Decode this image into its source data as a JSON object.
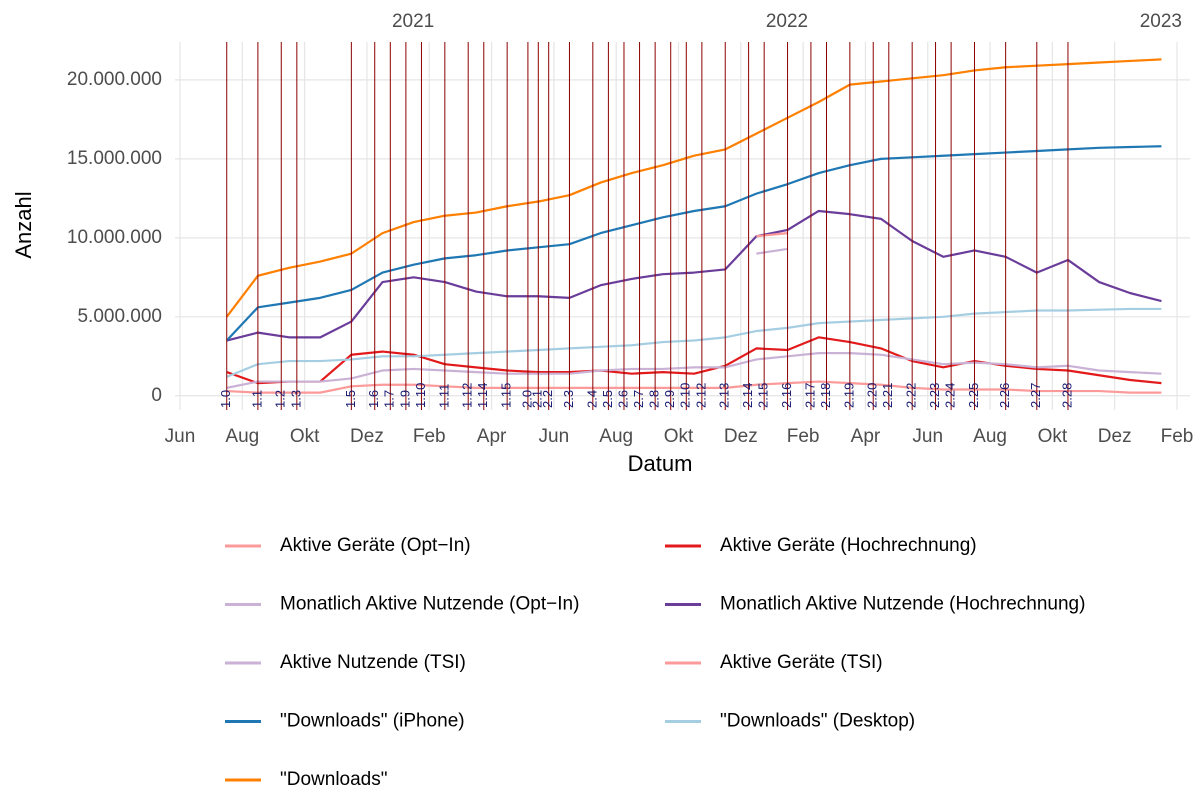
{
  "chart_data": {
    "type": "line",
    "xlabel": "Datum",
    "ylabel": "Anzahl",
    "x": [
      "2020-07",
      "2020-08",
      "2020-09",
      "2020-10",
      "2020-11",
      "2020-12",
      "2021-01",
      "2021-02",
      "2021-03",
      "2021-04",
      "2021-05",
      "2021-06",
      "2021-07",
      "2021-08",
      "2021-09",
      "2021-10",
      "2021-11",
      "2021-12",
      "2022-01",
      "2022-02",
      "2022-03",
      "2022-04",
      "2022-05",
      "2022-06",
      "2022-07",
      "2022-08",
      "2022-09",
      "2022-10",
      "2022-11",
      "2022-12",
      "2023-01"
    ],
    "series": [
      {
        "name": "Aktive Geräte (Opt−In)",
        "color": "#fb9a99",
        "values": [
          300000.0,
          200000.0,
          200000.0,
          200000.0,
          600000.0,
          700000.0,
          700000.0,
          600000.0,
          500000.0,
          500000.0,
          500000.0,
          500000.0,
          500000.0,
          500000.0,
          500000.0,
          500000.0,
          500000.0,
          700000.0,
          800000.0,
          900000.0,
          800000.0,
          700000.0,
          500000.0,
          400000.0,
          400000.0,
          400000.0,
          300000.0,
          300000.0,
          300000.0,
          200000.0,
          200000.0
        ]
      },
      {
        "name": "Aktive Geräte (Hochrechnung)",
        "color": "#e31a1c",
        "values": [
          1500000.0,
          800000.0,
          900000.0,
          900000.0,
          2600000.0,
          2800000.0,
          2600000.0,
          2000000.0,
          1800000.0,
          1600000.0,
          1500000.0,
          1500000.0,
          1600000.0,
          1400000.0,
          1500000.0,
          1400000.0,
          1900000.0,
          3000000.0,
          2900000.0,
          3700000.0,
          3400000.0,
          3000000.0,
          2200000.0,
          1800000.0,
          2200000.0,
          1900000.0,
          1700000.0,
          1600000.0,
          1300000.0,
          1000000.0,
          800000.0
        ]
      },
      {
        "name": "Monatlich Aktive Nutzende (Opt−In)",
        "color": "#cab2d6",
        "values": [
          500000.0,
          900000.0,
          900000.0,
          900000.0,
          1100000.0,
          1600000.0,
          1700000.0,
          1600000.0,
          1500000.0,
          1400000.0,
          1400000.0,
          1400000.0,
          1600000.0,
          1700000.0,
          1700000.0,
          1800000.0,
          1800000.0,
          2300000.0,
          2500000.0,
          2700000.0,
          2700000.0,
          2600000.0,
          2300000.0,
          2000000.0,
          2100000.0,
          2000000.0,
          1800000.0,
          1900000.0,
          1600000.0,
          1500000.0,
          1400000.0
        ]
      },
      {
        "name": "Monatlich Aktive Nutzende (Hochrechnung)",
        "color": "#6a3d9a",
        "values": [
          3500000.0,
          4000000.0,
          3700000.0,
          3700000.0,
          4700000.0,
          7200000.0,
          7500000.0,
          7200000.0,
          6600000.0,
          6300000.0,
          6300000.0,
          6200000.0,
          7000000.0,
          7400000.0,
          7700000.0,
          7800000.0,
          8000000.0,
          10100000.0,
          10500000.0,
          11700000.0,
          11500000.0,
          11200000.0,
          9800000.0,
          8800000.0,
          9200000.0,
          8800000.0,
          7800000.0,
          8600000.0,
          7200000.0,
          6500000.0,
          6000000.0
        ]
      },
      {
        "name": "Aktive Nutzende (TSI)",
        "color": "#cab2d6",
        "values": [
          null,
          null,
          null,
          null,
          null,
          null,
          null,
          null,
          null,
          null,
          null,
          null,
          null,
          null,
          null,
          null,
          null,
          9000000.0,
          9300000.0,
          null,
          null,
          null,
          null,
          null,
          null,
          null,
          null,
          null,
          null,
          null,
          null
        ]
      },
      {
        "name": "Aktive Geräte (TSI)",
        "color": "#fb9a99",
        "values": [
          null,
          null,
          null,
          null,
          null,
          null,
          null,
          null,
          null,
          null,
          null,
          null,
          null,
          null,
          null,
          null,
          null,
          10100000.0,
          10300000.0,
          null,
          null,
          null,
          null,
          null,
          null,
          null,
          null,
          null,
          null,
          null,
          null
        ]
      },
      {
        "name": "\"Downloads\" (iPhone)",
        "color": "#1f78b4",
        "values": [
          3500000.0,
          5600000.0,
          5900000.0,
          6200000.0,
          6700000.0,
          7800000.0,
          8300000.0,
          8700000.0,
          8900000.0,
          9200000.0,
          9400000.0,
          9600000.0,
          10300000.0,
          10800000.0,
          11300000.0,
          11700000.0,
          12000000.0,
          12800000.0,
          13400000.0,
          14100000.0,
          14600000.0,
          15000000.0,
          15100000.0,
          15200000.0,
          15300000.0,
          15400000.0,
          15500000.0,
          15600000.0,
          15700000.0,
          15750000.0,
          15800000.0
        ]
      },
      {
        "name": "\"Downloads\" (Desktop)",
        "color": "#a6cee3",
        "values": [
          1200000.0,
          2000000.0,
          2200000.0,
          2200000.0,
          2300000.0,
          2500000.0,
          2500000.0,
          2600000.0,
          2700000.0,
          2800000.0,
          2900000.0,
          3000000.0,
          3100000.0,
          3200000.0,
          3400000.0,
          3500000.0,
          3700000.0,
          4100000.0,
          4300000.0,
          4600000.0,
          4700000.0,
          4800000.0,
          4900000.0,
          5000000.0,
          5200000.0,
          5300000.0,
          5400000.0,
          5400000.0,
          5450000.0,
          5500000.0,
          5500000.0
        ]
      },
      {
        "name": "\"Downloads\"",
        "color": "#ff7f00",
        "values": [
          5000000.0,
          7600000.0,
          8100000.0,
          8500000.0,
          9000000.0,
          10300000.0,
          11000000.0,
          11400000.0,
          11600000.0,
          12000000.0,
          12300000.0,
          12700000.0,
          13500000.0,
          14100000.0,
          14600000.0,
          15200000.0,
          15600000.0,
          16600000.0,
          17600000.0,
          18600000.0,
          19700000.0,
          19900000.0,
          20100000.0,
          20300000.0,
          20600000.0,
          20800000.0,
          20900000.0,
          21000000.0,
          21100000.0,
          21200000.0,
          21300000.0
        ]
      }
    ],
    "xlim": [
      "2020-06",
      "2023-02"
    ],
    "xticks": [
      {
        "value": "2020-06",
        "label": "Jun"
      },
      {
        "value": "2020-08",
        "label": "Aug"
      },
      {
        "value": "2020-10",
        "label": "Okt"
      },
      {
        "value": "2020-12",
        "label": "Dez"
      },
      {
        "value": "2021-02",
        "label": "Feb"
      },
      {
        "value": "2021-04",
        "label": "Apr"
      },
      {
        "value": "2021-06",
        "label": "Jun"
      },
      {
        "value": "2021-08",
        "label": "Aug"
      },
      {
        "value": "2021-10",
        "label": "Okt"
      },
      {
        "value": "2021-12",
        "label": "Dez"
      },
      {
        "value": "2022-02",
        "label": "Feb"
      },
      {
        "value": "2022-04",
        "label": "Apr"
      },
      {
        "value": "2022-06",
        "label": "Jun"
      },
      {
        "value": "2022-08",
        "label": "Aug"
      },
      {
        "value": "2022-10",
        "label": "Okt"
      },
      {
        "value": "2022-12",
        "label": "Dez"
      },
      {
        "value": "2023-02",
        "label": "Feb"
      }
    ],
    "year_labels": [
      "2021",
      "2022",
      "2023"
    ],
    "ylim": [
      -900000,
      22400000
    ],
    "yticks": [
      0,
      {
        "value": 5000000,
        "label": "5.000.000"
      },
      {
        "value": 10000000,
        "label": "10.000.000"
      },
      {
        "value": 15000000,
        "label": "15.000.000"
      },
      {
        "value": 20000000,
        "label": "20.000.000"
      }
    ],
    "grid": true,
    "legend": "bottom",
    "version_color": "#8b0000",
    "version_label_color": "#191970",
    "versions": [
      {
        "label": "1.0",
        "x": "2020-07"
      },
      {
        "label": "1.1",
        "x": "2020-08"
      },
      {
        "label": "1.2",
        "x": "2020-09"
      },
      {
        "label": "1.3",
        "x": "2020-09"
      },
      {
        "label": "1.5",
        "x": "2020-11"
      },
      {
        "label": "1.6",
        "x": "2020-12"
      },
      {
        "label": "1.7",
        "x": "2020-12"
      },
      {
        "label": "1.9",
        "x": "2021-01"
      },
      {
        "label": "1.10",
        "x": "2021-01"
      },
      {
        "label": "1.11",
        "x": "2021-02"
      },
      {
        "label": "1.12",
        "x": "2021-03"
      },
      {
        "label": "1.14",
        "x": "2021-03"
      },
      {
        "label": "1.15",
        "x": "2021-04"
      },
      {
        "label": "2.0",
        "x": "2021-05"
      },
      {
        "label": "2.1",
        "x": "2021-05"
      },
      {
        "label": "2.2",
        "x": "2021-05"
      },
      {
        "label": "2.3",
        "x": "2021-06"
      },
      {
        "label": "2.4",
        "x": "2021-07"
      },
      {
        "label": "2.5",
        "x": "2021-07"
      },
      {
        "label": "2.6",
        "x": "2021-08"
      },
      {
        "label": "2.7",
        "x": "2021-08"
      },
      {
        "label": "2.8",
        "x": "2021-09"
      },
      {
        "label": "2.9",
        "x": "2021-09"
      },
      {
        "label": "2.10",
        "x": "2021-10"
      },
      {
        "label": "2.12",
        "x": "2021-10"
      },
      {
        "label": "2.13",
        "x": "2021-11"
      },
      {
        "label": "2.14",
        "x": "2021-12"
      },
      {
        "label": "2.15",
        "x": "2021-12"
      },
      {
        "label": "2.16",
        "x": "2022-01"
      },
      {
        "label": "2.17",
        "x": "2022-02"
      },
      {
        "label": "2.18",
        "x": "2022-02"
      },
      {
        "label": "2.19",
        "x": "2022-03"
      },
      {
        "label": "2.20",
        "x": "2022-04"
      },
      {
        "label": "2.21",
        "x": "2022-04"
      },
      {
        "label": "2.22",
        "x": "2022-05"
      },
      {
        "label": "2.23",
        "x": "2022-06"
      },
      {
        "label": "2.24",
        "x": "2022-06"
      },
      {
        "label": "2.25",
        "x": "2022-07"
      },
      {
        "label": "2.26",
        "x": "2022-08"
      },
      {
        "label": "2.27",
        "x": "2022-09"
      },
      {
        "label": "2.28",
        "x": "2022-10"
      }
    ]
  }
}
